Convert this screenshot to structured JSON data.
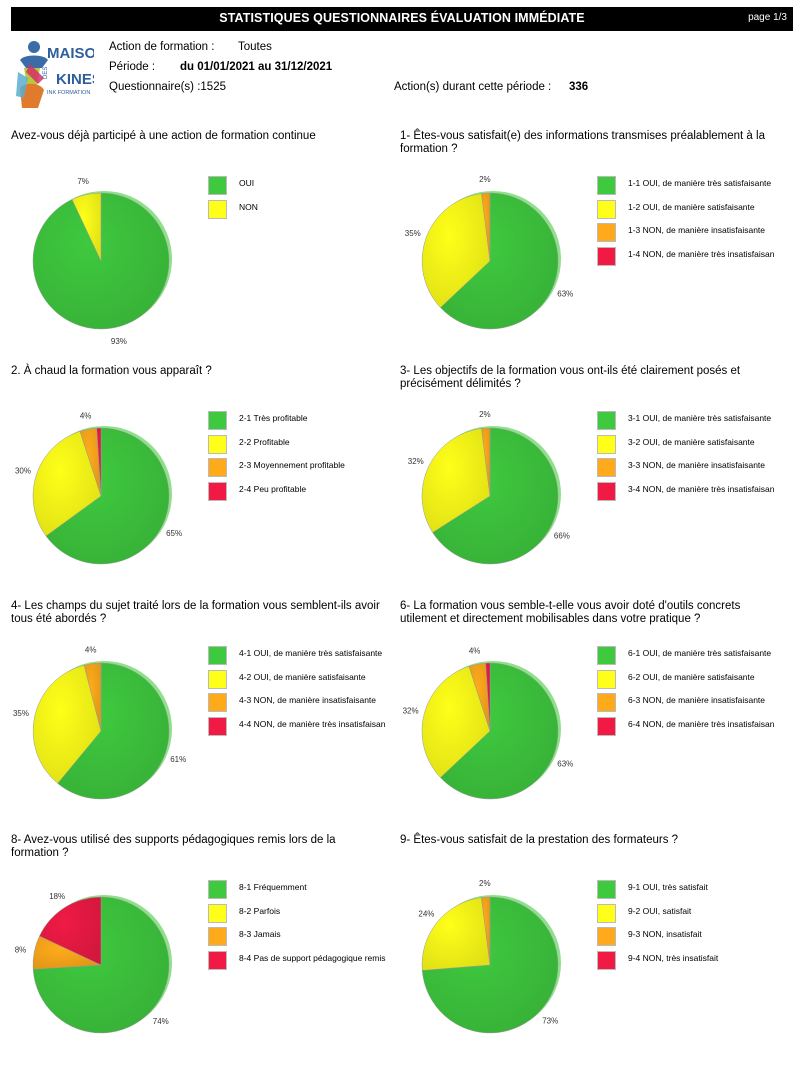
{
  "header": {
    "title": "STATISTIQUES QUESTIONNAIRES ÉVALUATION IMMÉDIATE",
    "page": "page 1/3",
    "action_label": "Action de formation :",
    "action_value": "Toutes",
    "period_label": "Période :",
    "period_value": "du 01/01/2021 au 31/12/2021",
    "questionnaires": "Questionnaire(s) :1525",
    "actions_label": "Action(s) durant cette période :",
    "actions_value": "336",
    "logo": {
      "icon": "maison-des-kines-logo-figure",
      "line1": "MAISON",
      "line2": "DES",
      "line3": "KINES",
      "line4": "INK FORMATION"
    }
  },
  "colors": {
    "green": "#3fc93f",
    "yellow": "#ffff19",
    "orange": "#ffaa1b",
    "red": "#f01a45"
  },
  "chart_data": [
    {
      "type": "pie",
      "title": "Avez-vous déjà participé à une action de formation continue",
      "slices": [
        {
          "label": "OUI",
          "value": 93,
          "color": "green"
        },
        {
          "label": "NON",
          "value": 7,
          "color": "yellow"
        }
      ],
      "labels_shown": [
        "93%",
        "7%"
      ],
      "legend": "right"
    },
    {
      "type": "pie",
      "title": "1- Êtes-vous satisfait(e) des informations transmises préalablement à la formation ?",
      "slices": [
        {
          "label": "1-1 OUI, de manière très satisfaisante",
          "value": 63,
          "color": "green"
        },
        {
          "label": "1-2 OUI, de manière satisfaisante",
          "value": 35,
          "color": "yellow"
        },
        {
          "label": "1-3 NON, de manière insatisfaisante",
          "value": 2,
          "color": "orange"
        },
        {
          "label": "1-4 NON, de manière très insatisfaisan",
          "value": 0,
          "color": "red"
        }
      ],
      "labels_shown": [
        "63%",
        "35%",
        "2%"
      ],
      "legend": "right"
    },
    {
      "type": "pie",
      "title": "2. À chaud la formation vous apparaît ?",
      "slices": [
        {
          "label": "2-1 Très profitable",
          "value": 65,
          "color": "green"
        },
        {
          "label": "2-2 Profitable",
          "value": 30,
          "color": "yellow"
        },
        {
          "label": "2-3 Moyennement profitable",
          "value": 4,
          "color": "orange"
        },
        {
          "label": "2-4 Peu profitable",
          "value": 1,
          "color": "red"
        }
      ],
      "labels_shown": [
        "65%",
        "30%",
        "4%"
      ],
      "legend": "right"
    },
    {
      "type": "pie",
      "title": "3- Les objectifs de la formation vous ont-ils été clairement posés et précisément délimités ?",
      "slices": [
        {
          "label": "3-1 OUI, de manière très satisfaisante",
          "value": 66,
          "color": "green"
        },
        {
          "label": "3-2 OUI, de manière satisfaisante",
          "value": 32,
          "color": "yellow"
        },
        {
          "label": "3-3 NON, de manière insatisfaisante",
          "value": 2,
          "color": "orange"
        },
        {
          "label": "3-4 NON, de manière très insatisfaisan",
          "value": 0,
          "color": "red"
        }
      ],
      "labels_shown": [
        "66%",
        "32%",
        "2%"
      ],
      "legend": "right"
    },
    {
      "type": "pie",
      "title": "4- Les champs du sujet traité lors de la formation vous semblent-ils avoir tous été abordés ?",
      "slices": [
        {
          "label": "4-1 OUI, de manière très satisfaisante",
          "value": 61,
          "color": "green"
        },
        {
          "label": "4-2 OUI, de manière satisfaisante",
          "value": 35,
          "color": "yellow"
        },
        {
          "label": "4-3 NON, de manière insatisfaisante",
          "value": 4,
          "color": "orange"
        },
        {
          "label": "4-4 NON, de manière très insatisfaisan",
          "value": 0,
          "color": "red"
        }
      ],
      "labels_shown": [
        "61%",
        "35%",
        "4%"
      ],
      "legend": "right"
    },
    {
      "type": "pie",
      "title": "6- La formation vous semble-t-elle vous avoir doté d'outils concrets utilement et directement mobilisables dans votre pratique ?",
      "slices": [
        {
          "label": "6-1 OUI, de manière très satisfaisante",
          "value": 63,
          "color": "green"
        },
        {
          "label": "6-2 OUI, de manière satisfaisante",
          "value": 32,
          "color": "yellow"
        },
        {
          "label": "6-3 NON, de manière insatisfaisante",
          "value": 4,
          "color": "orange"
        },
        {
          "label": "6-4 NON, de manière très insatisfaisan",
          "value": 1,
          "color": "red"
        }
      ],
      "labels_shown": [
        "63%",
        "32%",
        "4%"
      ],
      "legend": "right"
    },
    {
      "type": "pie",
      "title": "8- Avez-vous utilisé des supports pédagogiques remis lors de la formation ?",
      "slices": [
        {
          "label": "8-1 Fréquemment",
          "value": 74,
          "color": "green"
        },
        {
          "label": "8-2 Parfois",
          "value": 0,
          "color": "yellow"
        },
        {
          "label": "8-3 Jamais",
          "value": 8,
          "color": "orange"
        },
        {
          "label": "8-4 Pas de support pédagogique remis",
          "value": 18,
          "color": "red"
        }
      ],
      "labels_shown": [
        "74%",
        "8%",
        "18%"
      ],
      "legend": "right"
    },
    {
      "type": "pie",
      "title": "9- Êtes-vous satisfait de la prestation des formateurs ?",
      "slices": [
        {
          "label": "9-1 OUI, très satisfait",
          "value": 73,
          "color": "green"
        },
        {
          "label": "9-2 OUI, satisfait",
          "value": 24,
          "color": "yellow"
        },
        {
          "label": "9-3 NON, insatisfait",
          "value": 2,
          "color": "orange"
        },
        {
          "label": "9-4 NON, très insatisfait",
          "value": 0,
          "color": "red"
        }
      ],
      "labels_shown": [
        "73%",
        "24%",
        "2%"
      ],
      "legend": "right"
    }
  ]
}
